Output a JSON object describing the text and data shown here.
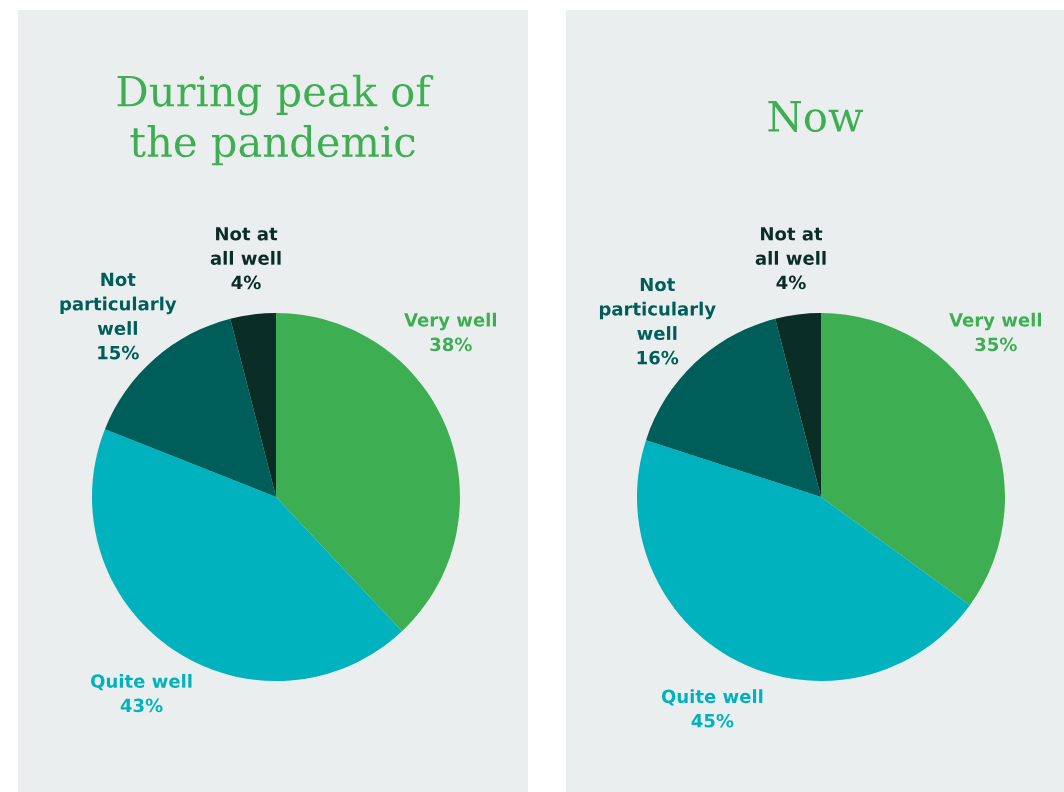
{
  "chart_data": [
    {
      "type": "pie",
      "title": "During peak of\nthe pandemic",
      "categories": [
        "Very well",
        "Quite well",
        "Not\nparticularly\nwell",
        "Not at\nall well"
      ],
      "values": [
        38,
        43,
        15,
        4
      ],
      "value_labels": [
        "38%",
        "43%",
        "15%",
        "4%"
      ],
      "colors": [
        "#3daf52",
        "#00b2bd",
        "#005e5a",
        "#0a2d26"
      ],
      "legend": false
    },
    {
      "type": "pie",
      "title": "Now",
      "categories": [
        "Very well",
        "Quite well",
        "Not\nparticularly\nwell",
        "Not at\nall well"
      ],
      "values": [
        35,
        45,
        16,
        4
      ],
      "value_labels": [
        "35%",
        "45%",
        "16%",
        "4%"
      ],
      "colors": [
        "#3daf52",
        "#00b2bd",
        "#005e5a",
        "#0a2d26"
      ],
      "legend": false
    }
  ]
}
